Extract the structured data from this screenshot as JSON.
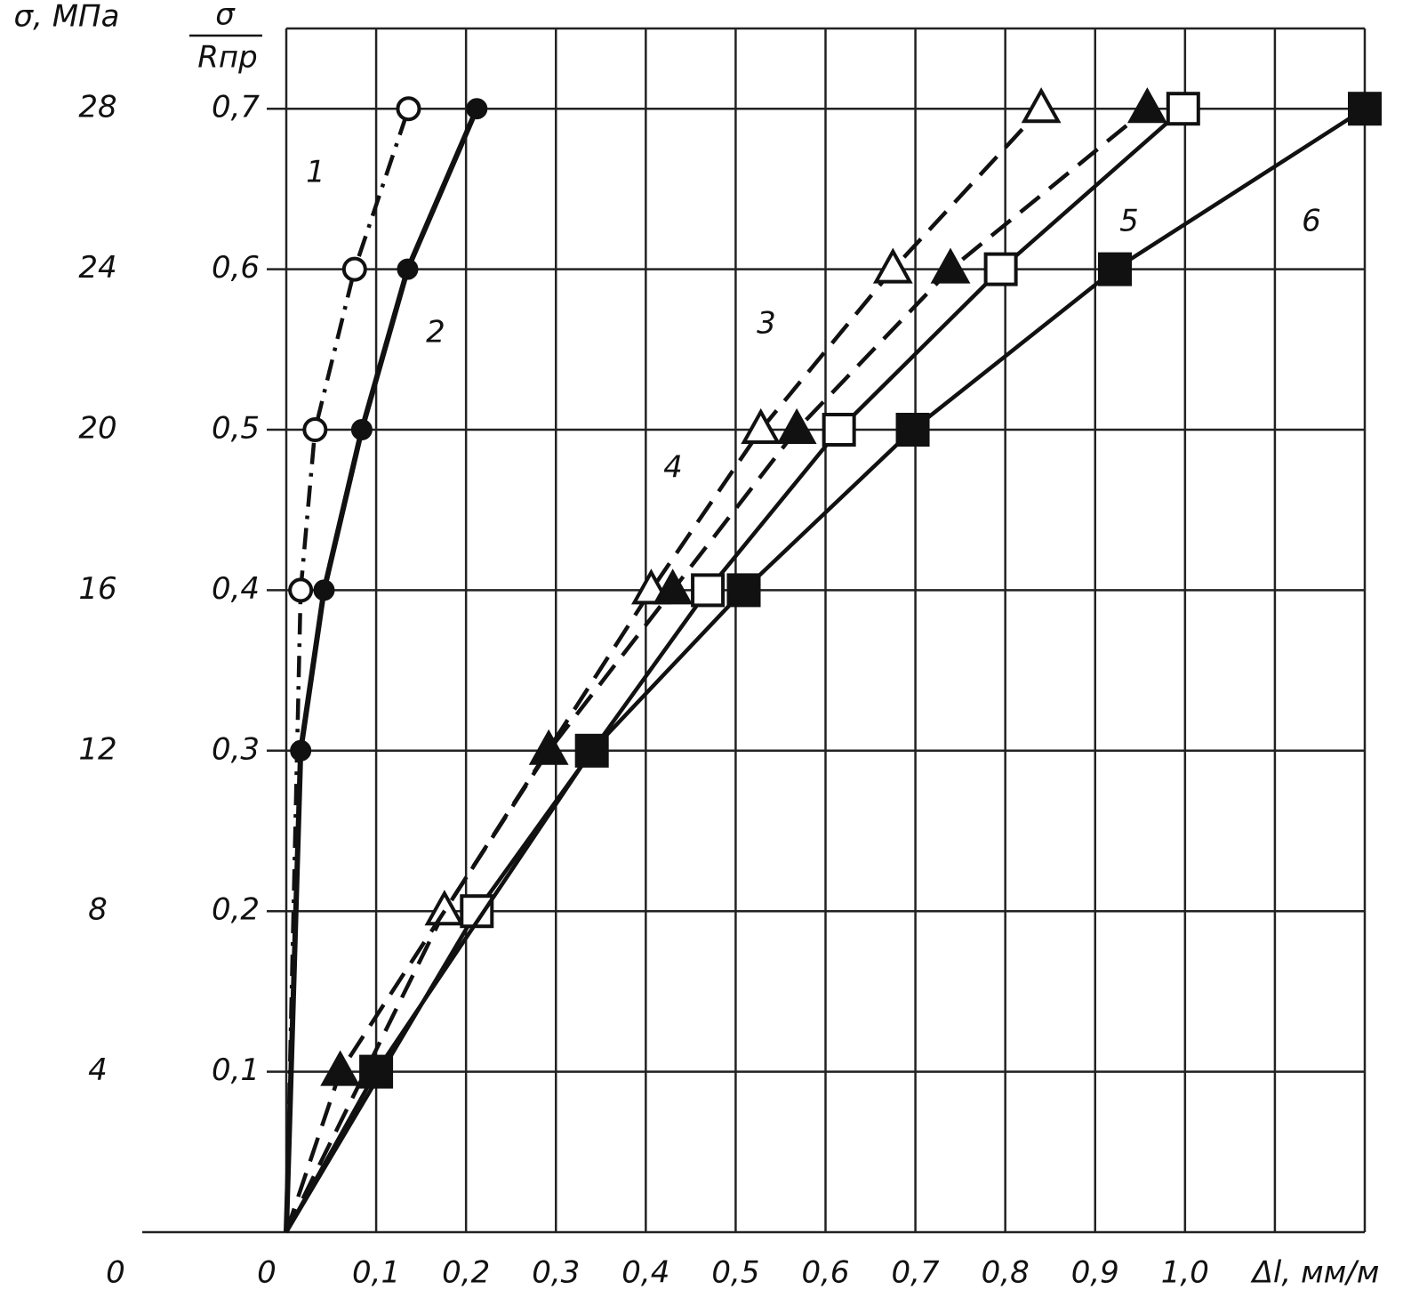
{
  "chart_data": {
    "type": "line",
    "y_label": "σ, МПа",
    "y2_label_numerator": "σ",
    "y2_label_denominator": "Rпр",
    "x_label": "Δl, мм/м",
    "xlim": [
      0,
      1.2
    ],
    "xticks": [
      {
        "value": 0,
        "label": "0"
      },
      {
        "value": 0.1,
        "label": "0,1"
      },
      {
        "value": 0.2,
        "label": "0,2"
      },
      {
        "value": 0.3,
        "label": "0,3"
      },
      {
        "value": 0.4,
        "label": "0,4"
      },
      {
        "value": 0.5,
        "label": "0,5"
      },
      {
        "value": 0.6,
        "label": "0,6"
      },
      {
        "value": 0.7,
        "label": "0,7"
      },
      {
        "value": 0.8,
        "label": "0,8"
      },
      {
        "value": 0.9,
        "label": "0,9"
      },
      {
        "value": 1.0,
        "label": "1,0"
      }
    ],
    "xgrid_extra": [
      1.1,
      1.2
    ],
    "ylim": [
      0,
      30
    ],
    "yticks": [
      0,
      4,
      8,
      12,
      16,
      20,
      24,
      28
    ],
    "y2lim": [
      0,
      0.75
    ],
    "y2ticks": [
      {
        "value": 0.1,
        "label": "0,1"
      },
      {
        "value": 0.2,
        "label": "0,2"
      },
      {
        "value": 0.3,
        "label": "0,3"
      },
      {
        "value": 0.4,
        "label": "0,4"
      },
      {
        "value": 0.5,
        "label": "0,5"
      },
      {
        "value": 0.6,
        "label": "0,6"
      },
      {
        "value": 0.7,
        "label": "0,7"
      }
    ],
    "grid": true,
    "series": [
      {
        "name": "1",
        "color": "#111",
        "marker": "circle-open",
        "dash": "dashdot",
        "x": [
          0,
          0.016,
          0.032,
          0.076,
          0.136
        ],
        "values": [
          0,
          16,
          20,
          24,
          28
        ]
      },
      {
        "name": "2",
        "color": "#111",
        "marker": "circle-filled",
        "dash": "solid",
        "x": [
          0,
          0.016,
          0.042,
          0.084,
          0.135,
          0.212
        ],
        "values": [
          0,
          12,
          16,
          20,
          24,
          28
        ]
      },
      {
        "name": "3",
        "color": "#111",
        "marker": "triangle-open",
        "dash": "dashed",
        "x": [
          0,
          0.176,
          0.406,
          0.528,
          0.675,
          0.84
        ],
        "values": [
          0,
          8,
          16,
          20,
          24,
          28
        ]
      },
      {
        "name": "4",
        "color": "#111",
        "marker": "triangle-filled",
        "dash": "dashed",
        "x": [
          0,
          0.06,
          0.292,
          0.43,
          0.568,
          0.739,
          0.958
        ],
        "values": [
          0,
          4,
          12,
          16,
          20,
          24,
          28
        ]
      },
      {
        "name": "5",
        "color": "#111",
        "marker": "square-open",
        "dash": "solid",
        "x": [
          0,
          0.212,
          0.469,
          0.615,
          0.795,
          0.998
        ],
        "values": [
          0,
          8,
          16,
          20,
          24,
          28
        ]
      },
      {
        "name": "6",
        "color": "#111",
        "marker": "square-filled",
        "dash": "solid",
        "x": [
          0,
          0.1,
          0.34,
          0.509,
          0.697,
          0.922,
          1.2
        ],
        "values": [
          0,
          4,
          12,
          16,
          20,
          24,
          28
        ]
      }
    ]
  }
}
